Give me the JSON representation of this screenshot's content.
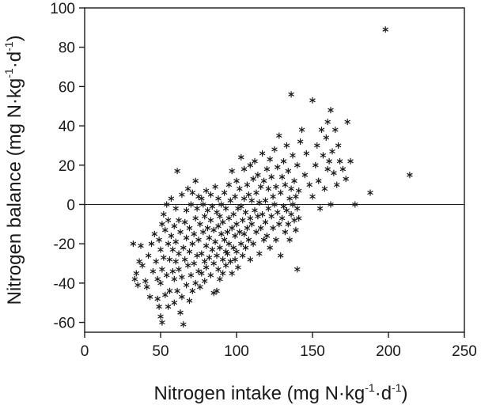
{
  "chart_data": {
    "type": "scatter",
    "xlabel": "Nitrogen intake (mg N·kg-1·d-1)",
    "xlabel_parts": [
      "Nitrogen intake (mg N·kg",
      "-1",
      "·d",
      "-1",
      ")"
    ],
    "ylabel": "Nitrogen balance (mg N·kg-1·d-1)",
    "ylabel_parts": [
      "Nitrogen balance (mg N·kg",
      "-1",
      "·d",
      "-1",
      ")"
    ],
    "xlim": [
      0,
      250
    ],
    "ylim": [
      -65,
      100
    ],
    "xticks": [
      0,
      50,
      100,
      150,
      200,
      250
    ],
    "yticks": [
      -60,
      -40,
      -20,
      0,
      20,
      40,
      60,
      80,
      100
    ],
    "reference_line_y": 0,
    "marker": "asterisk",
    "grid": false,
    "legend": "none",
    "outliers": [
      [
        198,
        89
      ],
      [
        214,
        15
      ],
      [
        188,
        6
      ],
      [
        136,
        56
      ],
      [
        150,
        53
      ],
      [
        173,
        42
      ],
      [
        162,
        48
      ],
      [
        140,
        -33
      ]
    ],
    "points": [
      [
        32,
        -20
      ],
      [
        33,
        -38
      ],
      [
        34,
        -35
      ],
      [
        35,
        -41
      ],
      [
        36,
        -29
      ],
      [
        37,
        -21
      ],
      [
        38,
        -31
      ],
      [
        40,
        -39
      ],
      [
        41,
        -42
      ],
      [
        43,
        -47
      ],
      [
        42,
        -26
      ],
      [
        44,
        -20
      ],
      [
        45,
        -34
      ],
      [
        46,
        -15
      ],
      [
        47,
        -29
      ],
      [
        48,
        -38
      ],
      [
        48,
        -48
      ],
      [
        49,
        -52
      ],
      [
        49,
        -18
      ],
      [
        50,
        -57
      ],
      [
        50,
        -40
      ],
      [
        50,
        -23
      ],
      [
        51,
        -60
      ],
      [
        51,
        -33
      ],
      [
        51,
        -10
      ],
      [
        52,
        -5
      ],
      [
        52,
        -27
      ],
      [
        53,
        -46
      ],
      [
        53,
        -13
      ],
      [
        54,
        0
      ],
      [
        54,
        -36
      ],
      [
        55,
        -20
      ],
      [
        55,
        -52
      ],
      [
        55,
        -8
      ],
      [
        56,
        -28
      ],
      [
        56,
        -44
      ],
      [
        57,
        -16
      ],
      [
        57,
        3
      ],
      [
        58,
        -34
      ],
      [
        58,
        -23
      ],
      [
        59,
        -50
      ],
      [
        59,
        -11
      ],
      [
        59,
        -38
      ],
      [
        60,
        -2
      ],
      [
        60,
        -29
      ],
      [
        60,
        -19
      ],
      [
        61,
        -44
      ],
      [
        61,
        17
      ],
      [
        62,
        -8
      ],
      [
        62,
        -25
      ],
      [
        62,
        -33
      ],
      [
        63,
        -55
      ],
      [
        63,
        -14
      ],
      [
        64,
        -47
      ],
      [
        64,
        5
      ],
      [
        64,
        -37
      ],
      [
        65,
        -61
      ],
      [
        65,
        -22
      ],
      [
        66,
        -9
      ],
      [
        66,
        -28
      ],
      [
        67,
        -41
      ],
      [
        67,
        -3
      ],
      [
        67,
        -17
      ],
      [
        68,
        -31
      ],
      [
        68,
        8
      ],
      [
        69,
        -49
      ],
      [
        69,
        -12
      ],
      [
        69,
        -24
      ],
      [
        70,
        0
      ],
      [
        70,
        -36
      ],
      [
        71,
        -20
      ],
      [
        71,
        -44
      ],
      [
        71,
        6
      ],
      [
        72,
        -15
      ],
      [
        72,
        -30
      ],
      [
        73,
        -7
      ],
      [
        73,
        -40
      ],
      [
        73,
        12
      ],
      [
        74,
        -26
      ],
      [
        74,
        -2
      ],
      [
        75,
        -34
      ],
      [
        75,
        -18
      ],
      [
        75,
        4
      ],
      [
        76,
        -42
      ],
      [
        76,
        -10
      ],
      [
        77,
        -25
      ],
      [
        77,
        3
      ],
      [
        77,
        -35
      ],
      [
        78,
        -14
      ],
      [
        78,
        0
      ],
      [
        79,
        -29
      ],
      [
        79,
        -6
      ],
      [
        79,
        -39
      ],
      [
        80,
        -21
      ],
      [
        80,
        7
      ],
      [
        80,
        -32
      ],
      [
        81,
        -12
      ],
      [
        81,
        -3
      ],
      [
        82,
        -27
      ],
      [
        82,
        -17
      ],
      [
        83,
        -36
      ],
      [
        83,
        -8
      ],
      [
        83,
        5
      ],
      [
        84,
        -23
      ],
      [
        84,
        -1
      ],
      [
        85,
        -45
      ],
      [
        85,
        -30
      ],
      [
        85,
        -13
      ],
      [
        86,
        -19
      ],
      [
        86,
        9
      ],
      [
        87,
        -44
      ],
      [
        87,
        -26
      ],
      [
        87,
        -4
      ],
      [
        88,
        -11
      ],
      [
        88,
        -33
      ],
      [
        88,
        3
      ],
      [
        89,
        -22
      ],
      [
        89,
        -38
      ],
      [
        89,
        -6
      ],
      [
        90,
        -15
      ],
      [
        90,
        0
      ],
      [
        91,
        -28
      ],
      [
        91,
        -9
      ],
      [
        91,
        -35
      ],
      [
        92,
        -18
      ],
      [
        92,
        6
      ],
      [
        93,
        -31
      ],
      [
        93,
        -2
      ],
      [
        93,
        -24
      ],
      [
        94,
        -14
      ],
      [
        94,
        -25
      ],
      [
        95,
        -7
      ],
      [
        95,
        10
      ],
      [
        95,
        -20
      ],
      [
        96,
        -29
      ],
      [
        96,
        2
      ],
      [
        97,
        -12
      ],
      [
        97,
        -35
      ],
      [
        97,
        17
      ],
      [
        98,
        -22
      ],
      [
        98,
        -5
      ],
      [
        99,
        -16
      ],
      [
        99,
        -28
      ],
      [
        99,
        4
      ],
      [
        100,
        -10
      ],
      [
        100,
        -24
      ],
      [
        100,
        12
      ],
      [
        101,
        -2
      ],
      [
        101,
        -32
      ],
      [
        102,
        -14
      ],
      [
        102,
        8
      ],
      [
        103,
        -20
      ],
      [
        103,
        -1
      ],
      [
        103,
        24
      ],
      [
        104,
        -8
      ],
      [
        104,
        -26
      ],
      [
        105,
        3
      ],
      [
        105,
        -15
      ],
      [
        105,
        18
      ],
      [
        106,
        -22
      ],
      [
        106,
        -4
      ],
      [
        107,
        10
      ],
      [
        107,
        -12
      ],
      [
        108,
        -18
      ],
      [
        108,
        5
      ],
      [
        109,
        -28
      ],
      [
        109,
        -7
      ],
      [
        109,
        20
      ],
      [
        110,
        -10
      ],
      [
        110,
        2
      ],
      [
        111,
        13
      ],
      [
        111,
        -20
      ],
      [
        112,
        -3
      ],
      [
        112,
        22
      ],
      [
        113,
        -14
      ],
      [
        113,
        6
      ],
      [
        114,
        -6
      ],
      [
        114,
        15
      ],
      [
        115,
        -25
      ],
      [
        115,
        1
      ],
      [
        116,
        9
      ],
      [
        116,
        -12
      ],
      [
        117,
        26
      ],
      [
        117,
        -5
      ],
      [
        118,
        -18
      ],
      [
        118,
        12
      ],
      [
        119,
        2
      ],
      [
        119,
        -9
      ],
      [
        120,
        18
      ],
      [
        120,
        -16
      ],
      [
        121,
        8
      ],
      [
        121,
        -2
      ],
      [
        122,
        23
      ],
      [
        122,
        -22
      ],
      [
        123,
        -6
      ],
      [
        123,
        14
      ],
      [
        124,
        4
      ],
      [
        124,
        -12
      ],
      [
        125,
        28
      ],
      [
        125,
        0
      ],
      [
        126,
        -18
      ],
      [
        126,
        9
      ],
      [
        127,
        -4
      ],
      [
        127,
        19
      ],
      [
        128,
        35
      ],
      [
        128,
        -10
      ],
      [
        129,
        6
      ],
      [
        129,
        -26
      ],
      [
        130,
        14
      ],
      [
        130,
        -7
      ],
      [
        131,
        -1
      ],
      [
        131,
        22
      ],
      [
        132,
        -14
      ],
      [
        132,
        10
      ],
      [
        133,
        -3
      ],
      [
        133,
        30
      ],
      [
        134,
        -10
      ],
      [
        134,
        17
      ],
      [
        135,
        3
      ],
      [
        135,
        -18
      ],
      [
        136,
        8
      ],
      [
        136,
        -5
      ],
      [
        137,
        25
      ],
      [
        137,
        0
      ],
      [
        138,
        -8
      ],
      [
        138,
        12
      ],
      [
        139,
        -13
      ],
      [
        139,
        4
      ],
      [
        140,
        -2
      ],
      [
        140,
        20
      ],
      [
        141,
        -7
      ],
      [
        141,
        7
      ],
      [
        142,
        32
      ],
      [
        143,
        38
      ],
      [
        145,
        15
      ],
      [
        146,
        26
      ],
      [
        148,
        10
      ],
      [
        150,
        4
      ],
      [
        152,
        20
      ],
      [
        153,
        30
      ],
      [
        154,
        12
      ],
      [
        155,
        -2
      ],
      [
        156,
        38
      ],
      [
        157,
        25
      ],
      [
        158,
        8
      ],
      [
        159,
        34
      ],
      [
        160,
        18
      ],
      [
        160,
        42
      ],
      [
        161,
        22
      ],
      [
        162,
        0
      ],
      [
        163,
        27
      ],
      [
        164,
        16
      ],
      [
        165,
        38
      ],
      [
        166,
        10
      ],
      [
        167,
        30
      ],
      [
        168,
        22
      ],
      [
        170,
        18
      ],
      [
        172,
        13
      ],
      [
        175,
        22
      ],
      [
        178,
        0
      ]
    ]
  }
}
